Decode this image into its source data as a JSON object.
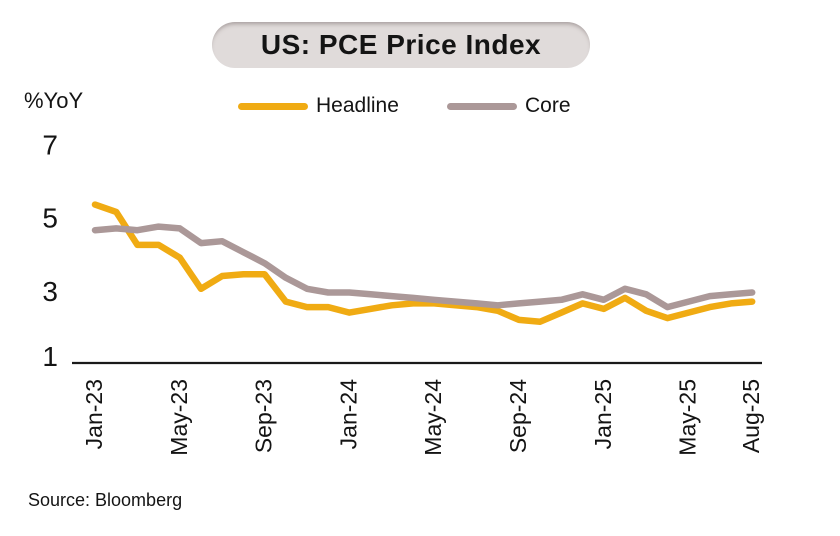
{
  "title": "US: PCE Price Index",
  "y_axis_unit_label": "%YoY",
  "source": "Source: Bloomberg",
  "colors": {
    "headline": "#F0AB13",
    "core": "#AB9898",
    "axis": "#1a1a1a",
    "text": "#141414",
    "title_pill_bg": "#E0DBDA"
  },
  "legend": [
    {
      "label": "Headline",
      "color": "#F0AB13"
    },
    {
      "label": "Core",
      "color": "#AB9898"
    }
  ],
  "chart_data": {
    "type": "line",
    "title": "US: PCE Price Index",
    "ylabel": "%YoY",
    "xlabel": "",
    "grid": false,
    "legend_position": "top",
    "ylim": [
      1,
      7
    ],
    "yticks": [
      1,
      3,
      5,
      7
    ],
    "x": [
      "Jan-23",
      "Feb-23",
      "Mar-23",
      "Apr-23",
      "May-23",
      "Jun-23",
      "Jul-23",
      "Aug-23",
      "Sep-23",
      "Oct-23",
      "Nov-23",
      "Dec-23",
      "Jan-24",
      "Feb-24",
      "Mar-24",
      "Apr-24",
      "May-24",
      "Jun-24",
      "Jul-24",
      "Aug-24",
      "Sep-24",
      "Oct-24",
      "Nov-24",
      "Dec-24",
      "Jan-25",
      "Feb-25",
      "Mar-25",
      "Apr-25",
      "May-25",
      "Jun-25",
      "Jul-25",
      "Aug-25"
    ],
    "xticks": [
      "Jan-23",
      "May-23",
      "Sep-23",
      "Jan-24",
      "May-24",
      "Sep-24",
      "Jan-25",
      "May-25",
      "Aug-25"
    ],
    "series": [
      {
        "name": "Headline",
        "color": "#F0AB13",
        "values": [
          5.3,
          5.1,
          4.2,
          4.2,
          3.85,
          3.0,
          3.35,
          3.4,
          3.4,
          2.65,
          2.5,
          2.5,
          2.35,
          2.45,
          2.55,
          2.6,
          2.6,
          2.55,
          2.5,
          2.4,
          2.15,
          2.1,
          2.35,
          2.6,
          2.45,
          2.75,
          2.4,
          2.2,
          2.35,
          2.5,
          2.6,
          2.65
        ]
      },
      {
        "name": "Core",
        "color": "#AB9898",
        "values": [
          4.6,
          4.65,
          4.6,
          4.7,
          4.65,
          4.25,
          4.3,
          4.0,
          3.7,
          3.3,
          3.0,
          2.9,
          2.9,
          2.85,
          2.8,
          2.75,
          2.7,
          2.65,
          2.6,
          2.55,
          2.6,
          2.65,
          2.7,
          2.85,
          2.7,
          3.0,
          2.85,
          2.5,
          2.65,
          2.8,
          2.85,
          2.9
        ]
      }
    ]
  }
}
